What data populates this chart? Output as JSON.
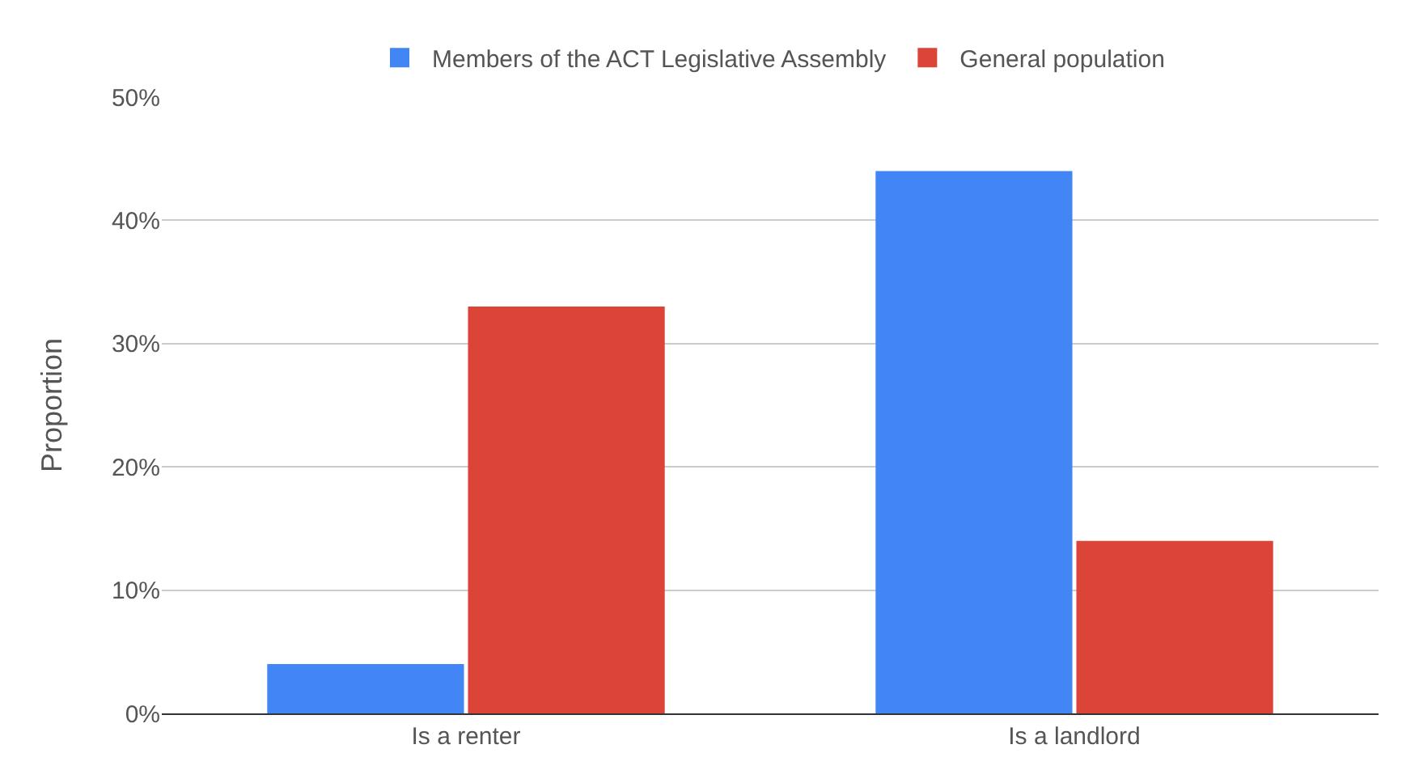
{
  "chart_data": {
    "type": "bar",
    "ylabel": "Proportion",
    "categories": [
      "Is a renter",
      "Is a landlord"
    ],
    "series": [
      {
        "name": "Members of the ACT Legislative Assembly",
        "color": "#4285f4",
        "values": [
          4,
          44
        ]
      },
      {
        "name": "General population",
        "color": "#db4437",
        "values": [
          33,
          14
        ]
      }
    ],
    "ylim": [
      0,
      50
    ],
    "yticks": [
      {
        "value": 0,
        "label": "0%"
      },
      {
        "value": 10,
        "label": "10%"
      },
      {
        "value": 20,
        "label": "20%"
      },
      {
        "value": 30,
        "label": "30%"
      },
      {
        "value": 40,
        "label": "40%"
      },
      {
        "value": 50,
        "label": "50%"
      }
    ],
    "grid": "y",
    "legend": "top"
  }
}
